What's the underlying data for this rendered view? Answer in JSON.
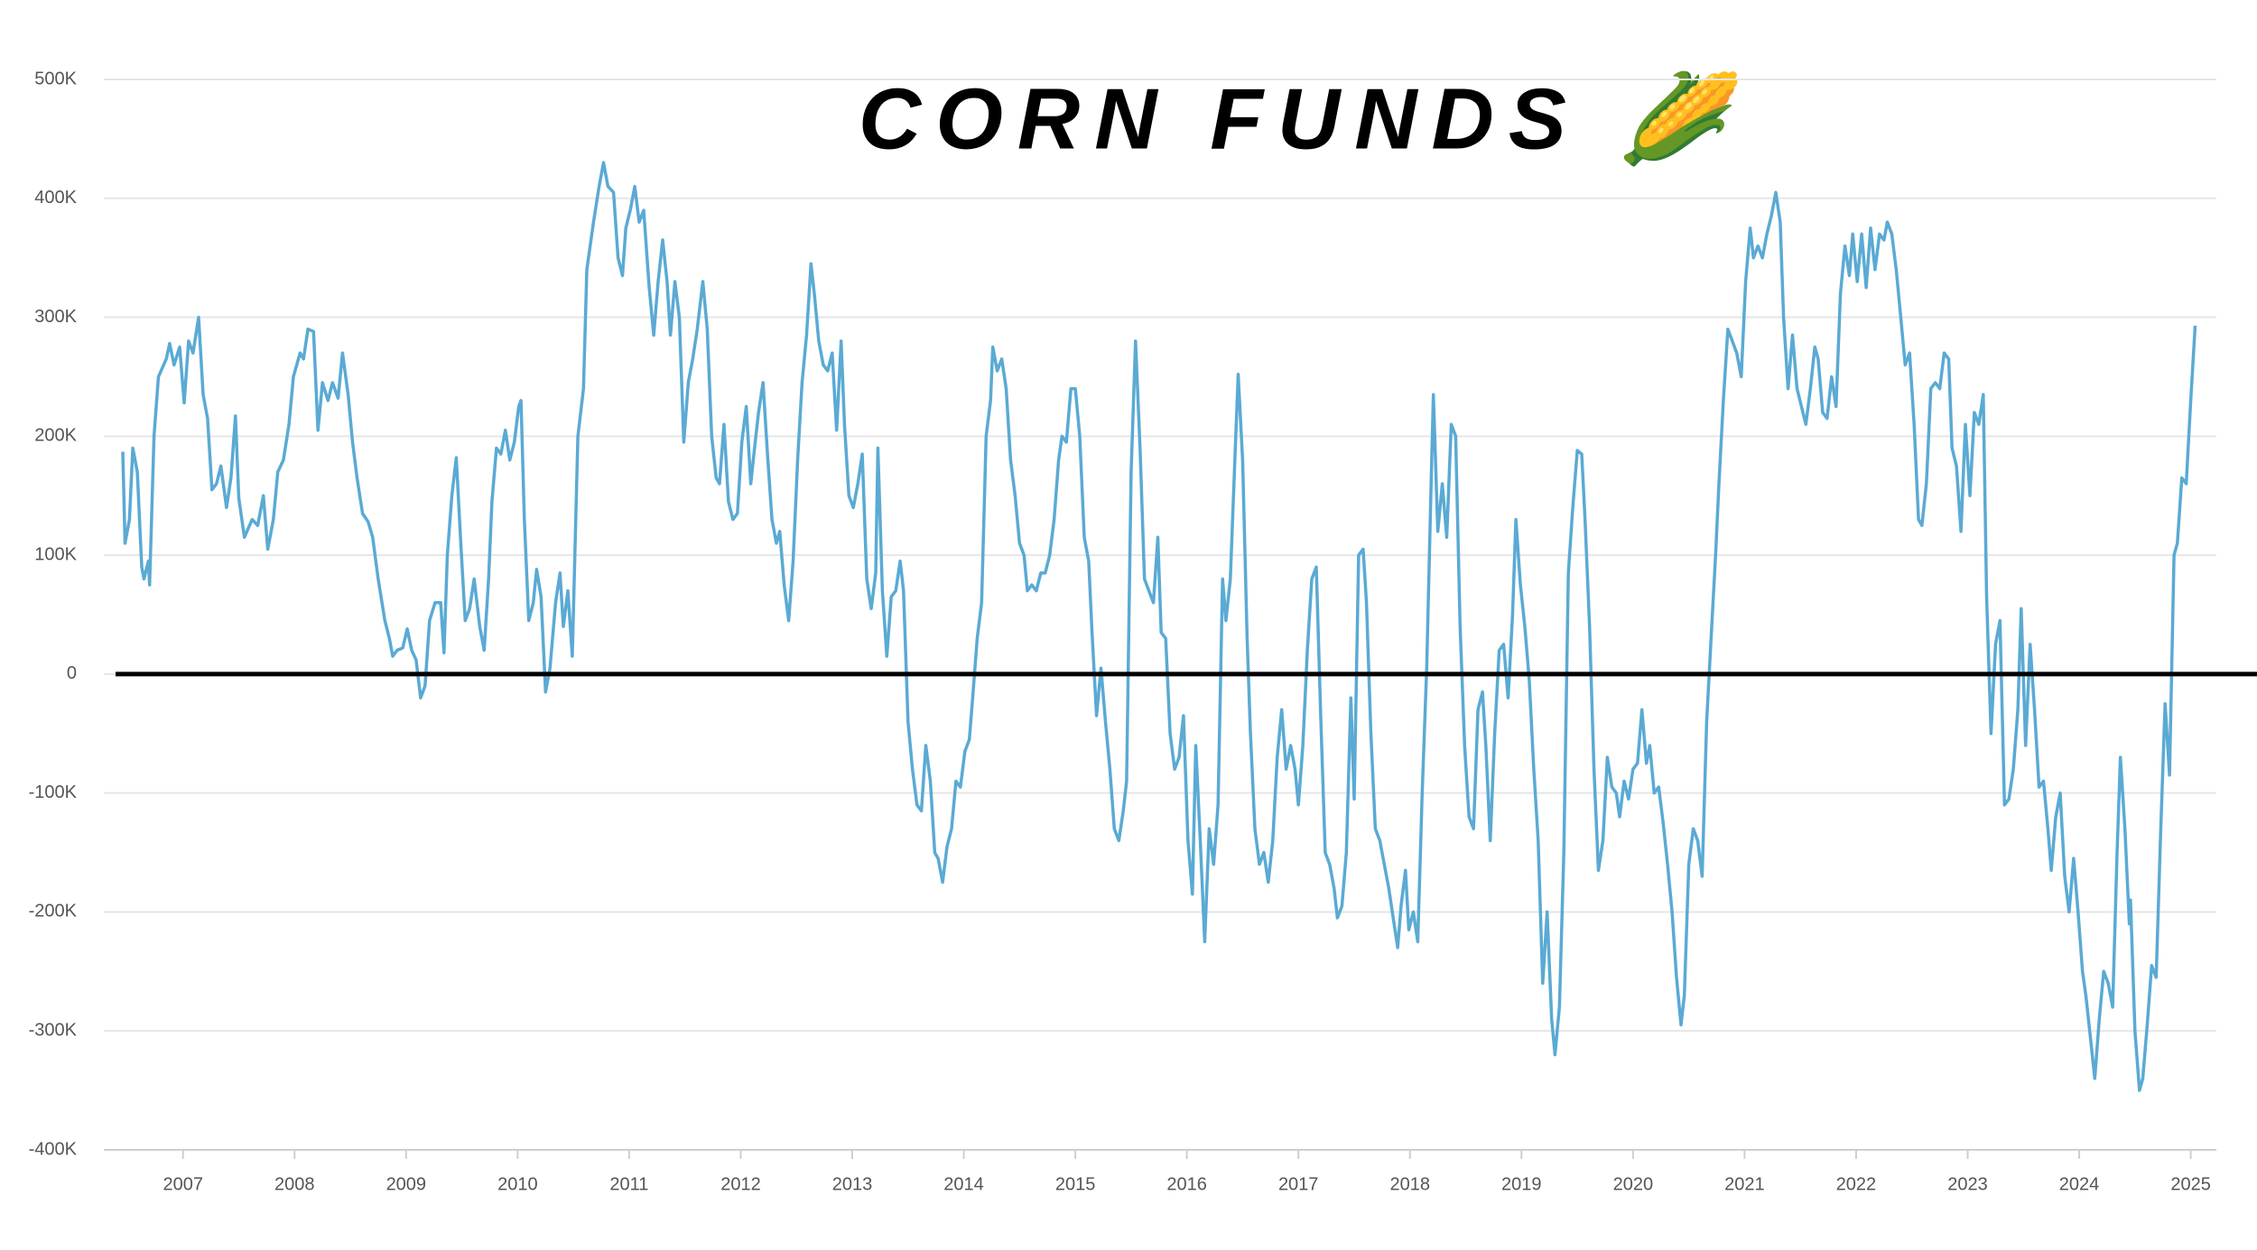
{
  "chart_data": {
    "type": "line",
    "title": "CORN FUNDS 🌽",
    "xlim": [
      2006.29,
      2025.23
    ],
    "xticks": [
      2007,
      2008,
      2009,
      2010,
      2011,
      2012,
      2013,
      2014,
      2015,
      2016,
      2017,
      2018,
      2019,
      2020,
      2021,
      2022,
      2023,
      2024,
      2025
    ],
    "ylim": [
      -400000,
      500000
    ],
    "yticks": [
      {
        "value": -400000,
        "label": "-400K"
      },
      {
        "value": -300000,
        "label": "-300K"
      },
      {
        "value": -200000,
        "label": "-200K"
      },
      {
        "value": -100000,
        "label": "-100K"
      },
      0,
      {
        "value": 100000,
        "label": "100K"
      },
      {
        "value": 200000,
        "label": "200K"
      },
      {
        "value": 300000,
        "label": "300K"
      },
      {
        "value": 400000,
        "label": "400K"
      },
      {
        "value": 500000,
        "label": "500K"
      }
    ],
    "grid": true,
    "reference_line": 0,
    "x": [
      2006.46,
      2006.48,
      2006.52,
      2006.55,
      2006.59,
      2006.63,
      2006.65,
      2006.69,
      2006.7,
      2006.74,
      2006.78,
      2006.85,
      2006.88,
      2006.92,
      2006.97,
      2007.01,
      2007.05,
      2007.09,
      2007.14,
      2007.18,
      2007.22,
      2007.26,
      2007.3,
      2007.34,
      2007.39,
      2007.43,
      2007.47,
      2007.5,
      2007.55,
      2007.62,
      2007.67,
      2007.72,
      2007.76,
      2007.81,
      2007.85,
      2007.9,
      2007.95,
      2007.99,
      2008.05,
      2008.08,
      2008.12,
      2008.17,
      2008.21,
      2008.25,
      2008.3,
      2008.34,
      2008.39,
      2008.43,
      2008.48,
      2008.52,
      2008.56,
      2008.61,
      2008.66,
      2008.7,
      2008.75,
      2008.81,
      2008.85,
      2008.88,
      2008.92,
      2008.97,
      2009.01,
      2009.05,
      2009.09,
      2009.13,
      2009.17,
      2009.21,
      2009.26,
      2009.31,
      2009.34,
      2009.37,
      2009.41,
      2009.45,
      2009.49,
      2009.53,
      2009.57,
      2009.61,
      2009.66,
      2009.7,
      2009.74,
      2009.77,
      2009.81,
      2009.85,
      2009.89,
      2009.93,
      2009.97,
      2010.01,
      2010.03,
      2010.06,
      2010.1,
      2010.14,
      2010.17,
      2010.21,
      2010.25,
      2010.29,
      2010.34,
      2010.38,
      2010.41,
      2010.45,
      2010.49,
      2010.54,
      2010.59,
      2010.62,
      2010.68,
      2010.73,
      2010.77,
      2010.81,
      2010.86,
      2010.9,
      2010.94,
      2010.97,
      2011.01,
      2011.05,
      2011.09,
      2011.13,
      2011.18,
      2011.22,
      2011.26,
      2011.3,
      2011.34,
      2011.37,
      2011.41,
      2011.45,
      2011.49,
      2011.53,
      2011.57,
      2011.61,
      2011.66,
      2011.7,
      2011.74,
      2011.78,
      2011.81,
      2011.85,
      2011.89,
      2011.93,
      2011.97,
      2012.01,
      2012.05,
      2012.09,
      2012.13,
      2012.16,
      2012.2,
      2012.24,
      2012.28,
      2012.32,
      2012.35,
      2012.39,
      2012.43,
      2012.47,
      2012.51,
      2012.55,
      2012.59,
      2012.63,
      2012.66,
      2012.7,
      2012.74,
      2012.78,
      2012.82,
      2012.86,
      2012.9,
      2012.93,
      2012.97,
      2013.01,
      2013.05,
      2013.09,
      2013.13,
      2013.17,
      2013.21,
      2013.23,
      2013.27,
      2013.31,
      2013.35,
      2013.39,
      2013.43,
      2013.46,
      2013.5,
      2013.54,
      2013.58,
      2013.62,
      2013.66,
      2013.7,
      2013.74,
      2013.77,
      2013.81,
      2013.85,
      2013.89,
      2013.93,
      2013.97,
      2014.01,
      2014.05,
      2014.08,
      2014.12,
      2014.16,
      2014.2,
      2014.24,
      2014.26,
      2014.3,
      2014.34,
      2014.38,
      2014.42,
      2014.46,
      2014.5,
      2014.54,
      2014.57,
      2014.61,
      2014.65,
      2014.69,
      2014.73,
      2014.77,
      2014.81,
      2014.85,
      2014.88,
      2014.92,
      2014.96,
      2015.0,
      2015.04,
      2015.08,
      2015.12,
      2015.15,
      2015.19,
      2015.23,
      2015.27,
      2015.31,
      2015.35,
      2015.39,
      2015.43,
      2015.46,
      2015.5,
      2015.54,
      2015.58,
      2015.62,
      2015.66,
      2015.7,
      2015.74,
      2015.77,
      2015.81,
      2015.85,
      2015.89,
      2015.93,
      2015.97,
      2016.01,
      2016.05,
      2016.08,
      2016.12,
      2016.16,
      2016.2,
      2016.24,
      2016.28,
      2016.32,
      2016.35,
      2016.39,
      2016.43,
      2016.46,
      2016.5,
      2016.54,
      2016.57,
      2016.61,
      2016.65,
      2016.69,
      2016.73,
      2016.77,
      2016.81,
      2016.85,
      2016.89,
      2016.93,
      2016.97,
      2017.0,
      2017.04,
      2017.08,
      2017.12,
      2017.16,
      2017.2,
      2017.24,
      2017.28,
      2017.32,
      2017.35,
      2017.39,
      2017.43,
      2017.47,
      2017.5,
      2017.54,
      2017.58,
      2017.61,
      2017.65,
      2017.69,
      2017.73,
      2017.77,
      2017.81,
      2017.85,
      2017.89,
      2017.92,
      2017.96,
      2017.99,
      2018.03,
      2018.07,
      2018.11,
      2018.15,
      2018.19,
      2018.21,
      2018.25,
      2018.29,
      2018.33,
      2018.37,
      2018.41,
      2018.45,
      2018.49,
      2018.53,
      2018.57,
      2018.61,
      2018.65,
      2018.68,
      2018.72,
      2018.76,
      2018.8,
      2018.84,
      2018.88,
      2018.92,
      2018.95,
      2018.99,
      2019.03,
      2019.07,
      2019.11,
      2019.15,
      2019.19,
      2019.23,
      2019.27,
      2019.3,
      2019.34,
      2019.38,
      2019.42,
      2019.46,
      2019.5,
      2019.54,
      2019.57,
      2019.61,
      2019.65,
      2019.69,
      2019.73,
      2019.77,
      2019.81,
      2019.85,
      2019.88,
      2019.92,
      2019.96,
      2020.0,
      2020.04,
      2020.08,
      2020.12,
      2020.15,
      2020.19,
      2020.23,
      2020.27,
      2020.31,
      2020.35,
      2020.39,
      2020.43,
      2020.46,
      2020.5,
      2020.54,
      2020.58,
      2020.62,
      2020.66,
      2020.7,
      2020.74,
      2020.77,
      2020.81,
      2020.85,
      2020.89,
      2020.93,
      2020.97,
      2021.01,
      2021.05,
      2021.08,
      2021.12,
      2021.16,
      2021.2,
      2021.24,
      2021.28,
      2021.32,
      2021.35,
      2021.39,
      2021.43,
      2021.47,
      2021.51,
      2021.55,
      2021.59,
      2021.63,
      2021.66,
      2021.7,
      2021.74,
      2021.78,
      2021.82,
      2021.86,
      2021.9,
      2021.94,
      2021.97,
      2022.01,
      2022.05,
      2022.09,
      2022.13,
      2022.17,
      2022.21,
      2022.25,
      2022.28,
      2022.32,
      2022.36,
      2022.4,
      2022.44,
      2022.48,
      2022.52,
      2022.56,
      2022.59,
      2022.63,
      2022.67,
      2022.71,
      2022.75,
      2022.79,
      2022.83,
      2022.86,
      2022.9,
      2022.94,
      2022.98,
      2023.02,
      2023.06,
      2023.1,
      2023.14,
      2023.17,
      2023.21,
      2023.25,
      2023.29,
      2023.33,
      2023.37,
      2023.41,
      2023.45,
      2023.48,
      2023.52,
      2023.56,
      2023.6,
      2023.64,
      2023.68,
      2023.72,
      2023.75,
      2023.79,
      2023.83,
      2023.87,
      2023.91,
      2023.95,
      2023.99,
      2024.03,
      2024.06,
      2024.1,
      2024.14,
      2024.18,
      2024.22,
      2024.26,
      2024.3,
      2024.34,
      2024.37,
      2024.41,
      2024.45,
      2024.46,
      2024.5,
      2024.54,
      2024.57,
      2024.61,
      2024.65,
      2024.69,
      2024.73,
      2024.77,
      2024.81,
      2024.85,
      2024.88,
      2024.92,
      2024.96,
      2025.0,
      2025.04
    ],
    "series": [
      {
        "color": "#5aaad4",
        "values": [
          187000,
          110000,
          130000,
          190000,
          170000,
          90000,
          80000,
          95000,
          75000,
          200000,
          250000,
          265000,
          278000,
          260000,
          275000,
          228000,
          280000,
          270000,
          300000,
          235000,
          215000,
          155000,
          160000,
          175000,
          140000,
          165000,
          217000,
          148000,
          115000,
          130000,
          125000,
          150000,
          105000,
          130000,
          170000,
          180000,
          210000,
          250000,
          270000,
          265000,
          290000,
          288000,
          205000,
          245000,
          230000,
          245000,
          232000,
          270000,
          235000,
          195000,
          165000,
          135000,
          128000,
          115000,
          80000,
          45000,
          30000,
          15000,
          20000,
          22000,
          38000,
          20000,
          12000,
          -20000,
          -10000,
          45000,
          60000,
          60000,
          18000,
          100000,
          150000,
          182000,
          110000,
          45000,
          55000,
          80000,
          40000,
          20000,
          80000,
          145000,
          190000,
          185000,
          205000,
          180000,
          195000,
          225000,
          230000,
          130000,
          45000,
          60000,
          88000,
          65000,
          -15000,
          5000,
          60000,
          85000,
          40000,
          70000,
          15000,
          200000,
          240000,
          340000,
          380000,
          410000,
          430000,
          410000,
          405000,
          350000,
          335000,
          375000,
          390000,
          410000,
          380000,
          390000,
          325000,
          285000,
          330000,
          365000,
          330000,
          285000,
          330000,
          300000,
          195000,
          245000,
          265000,
          290000,
          330000,
          290000,
          200000,
          165000,
          160000,
          210000,
          145000,
          130000,
          135000,
          195000,
          225000,
          160000,
          195000,
          220000,
          245000,
          185000,
          130000,
          110000,
          120000,
          75000,
          45000,
          95000,
          180000,
          245000,
          285000,
          345000,
          320000,
          280000,
          260000,
          255000,
          270000,
          205000,
          280000,
          210000,
          150000,
          140000,
          160000,
          185000,
          80000,
          55000,
          85000,
          190000,
          70000,
          15000,
          65000,
          70000,
          95000,
          70000,
          -40000,
          -80000,
          -110000,
          -115000,
          -60000,
          -90000,
          -150000,
          -155000,
          -175000,
          -145000,
          -130000,
          -90000,
          -95000,
          -65000,
          -55000,
          -20000,
          30000,
          60000,
          200000,
          230000,
          275000,
          255000,
          265000,
          240000,
          180000,
          150000,
          110000,
          100000,
          70000,
          75000,
          70000,
          85000,
          85000,
          100000,
          130000,
          180000,
          200000,
          195000,
          240000,
          240000,
          200000,
          115000,
          95000,
          35000,
          -35000,
          5000,
          -40000,
          -80000,
          -130000,
          -140000,
          -115000,
          -90000,
          170000,
          280000,
          190000,
          80000,
          70000,
          60000,
          115000,
          35000,
          30000,
          -50000,
          -80000,
          -70000,
          -35000,
          -140000,
          -185000,
          -60000,
          -140000,
          -225000,
          -130000,
          -160000,
          -110000,
          80000,
          45000,
          80000,
          180000,
          252000,
          180000,
          30000,
          -50000,
          -130000,
          -160000,
          -150000,
          -175000,
          -140000,
          -70000,
          -30000,
          -80000,
          -60000,
          -80000,
          -110000,
          -60000,
          20000,
          80000,
          90000,
          -35000,
          -150000,
          -160000,
          -180000,
          -205000,
          -195000,
          -150000,
          -20000,
          -105000,
          100000,
          105000,
          60000,
          -50000,
          -130000,
          -140000,
          -160000,
          -180000,
          -205000,
          -230000,
          -195000,
          -165000,
          -215000,
          -200000,
          -225000,
          -100000,
          5000,
          160000,
          235000,
          120000,
          160000,
          115000,
          210000,
          200000,
          40000,
          -60000,
          -120000,
          -130000,
          -30000,
          -15000,
          -60000,
          -140000,
          -50000,
          20000,
          25000,
          -20000,
          50000,
          130000,
          75000,
          40000,
          -5000,
          -80000,
          -140000,
          -260000,
          -200000,
          -290000,
          -320000,
          -280000,
          -150000,
          85000,
          140000,
          188000,
          185000,
          130000,
          40000,
          -80000,
          -165000,
          -140000,
          -70000,
          -95000,
          -100000,
          -120000,
          -90000,
          -105000,
          -80000,
          -75000,
          -30000,
          -75000,
          -60000,
          -100000,
          -95000,
          -125000,
          -160000,
          -200000,
          -255000,
          -295000,
          -270000,
          -160000,
          -130000,
          -140000,
          -170000,
          -40000,
          30000,
          100000,
          160000,
          230000,
          290000,
          280000,
          270000,
          250000,
          330000,
          375000,
          350000,
          360000,
          350000,
          370000,
          385000,
          405000,
          380000,
          300000,
          240000,
          285000,
          240000,
          225000,
          210000,
          240000,
          275000,
          265000,
          220000,
          215000,
          250000,
          225000,
          320000,
          360000,
          335000,
          370000,
          330000,
          370000,
          325000,
          375000,
          340000,
          370000,
          365000,
          380000,
          370000,
          340000,
          300000,
          260000,
          270000,
          210000,
          130000,
          125000,
          160000,
          240000,
          245000,
          240000,
          270000,
          265000,
          190000,
          175000,
          120000,
          210000,
          150000,
          220000,
          210000,
          235000,
          65000,
          -50000,
          25000,
          45000,
          -110000,
          -105000,
          -80000,
          -30000,
          55000,
          -60000,
          25000,
          -30000,
          -95000,
          -90000,
          -130000,
          -165000,
          -120000,
          -100000,
          -170000,
          -200000,
          -155000,
          -200000,
          -250000,
          -270000,
          -305000,
          -340000,
          -290000,
          -250000,
          -260000,
          -280000,
          -150000,
          -70000,
          -130000,
          -210000,
          -190000,
          -300000,
          -350000,
          -340000,
          -295000,
          -245000,
          -255000,
          -135000,
          -25000,
          -85000,
          100000,
          110000,
          165000,
          160000,
          230000,
          293000
        ]
      }
    ]
  }
}
